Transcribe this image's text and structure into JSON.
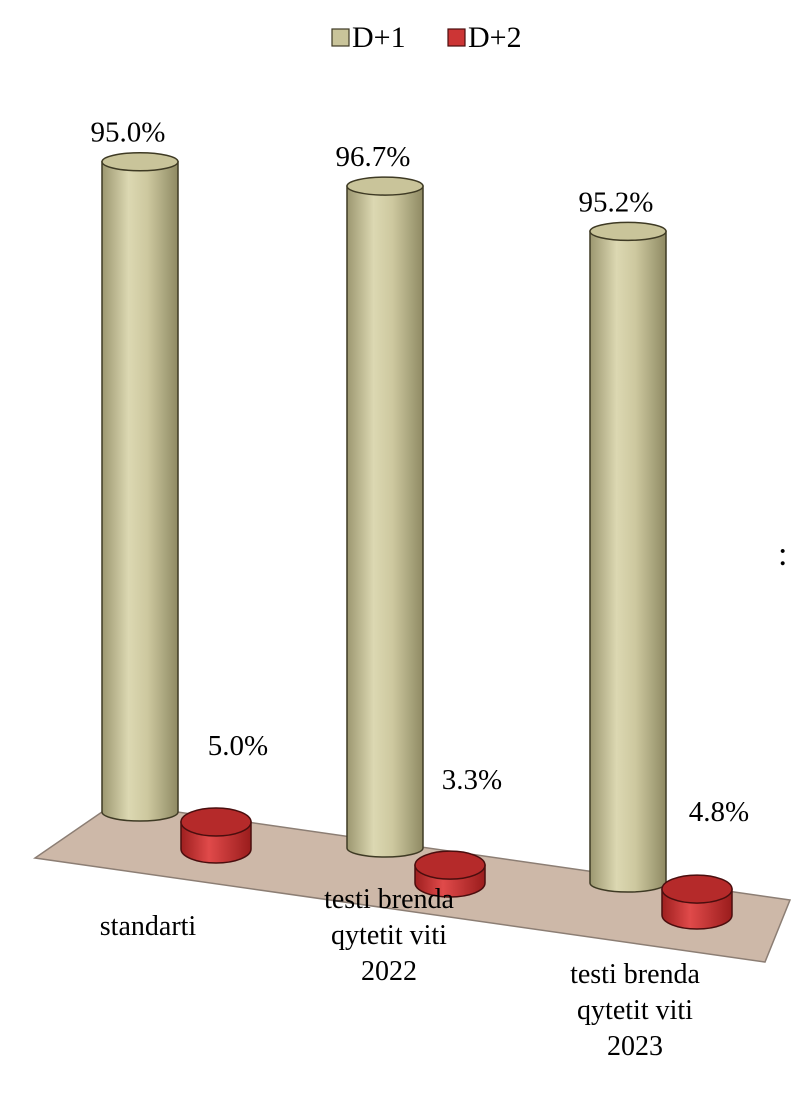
{
  "chart_data": {
    "type": "bar",
    "style": "3d-cylinder",
    "categories": [
      [
        "standarti"
      ],
      [
        "testi brenda",
        "qytetit viti",
        "2022"
      ],
      [
        "testi brenda",
        "qytetit viti",
        "2023"
      ]
    ],
    "series": [
      {
        "name": "D+1",
        "values": [
          95.0,
          96.7,
          95.2
        ],
        "labels": [
          "95.0%",
          "96.7%",
          "95.2%"
        ],
        "color": "#c9c49a"
      },
      {
        "name": "D+2",
        "values": [
          5.0,
          3.3,
          4.8
        ],
        "labels": [
          "5.0%",
          "3.3%",
          "4.8%"
        ],
        "color": "#cc3535"
      }
    ],
    "ylim": [
      0,
      100
    ],
    "legend": "top-center",
    "floor_color": "#cdb8a8",
    "grid": false
  },
  "edge_text": ":"
}
